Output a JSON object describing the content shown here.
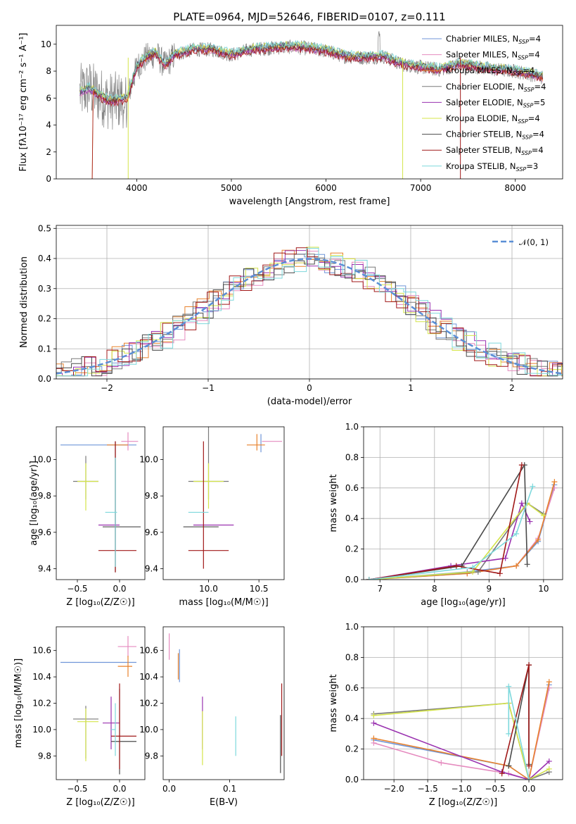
{
  "figure_title": "PLATE=0964, MJD=52646, FIBERID=0107, z=0.111",
  "colors": {
    "chabrier_miles": "#6f95d8",
    "salpeter_miles": "#e58bbf",
    "kroupa_miles": "#e8822c",
    "chabrier_elodie": "#7a7a7a",
    "salpeter_elodie": "#9a32b0",
    "kroupa_elodie": "#d4e44a",
    "chabrier_stelib": "#4a4a4a",
    "salpeter_stelib": "#a01818",
    "kroupa_stelib": "#7dd8dc",
    "gauss": "#5b8fd6",
    "grid": "#b0b0b0"
  },
  "legend_spectrum": [
    {
      "model": "Chabrier MILES",
      "nssp": "4"
    },
    {
      "model": "Salpeter MILES",
      "nssp": "4"
    },
    {
      "model": "Kroupa MILES",
      "nssp": "4"
    },
    {
      "model": "Chabrier ELODIE",
      "nssp": "4"
    },
    {
      "model": "Salpeter ELODIE",
      "nssp": "5"
    },
    {
      "model": "Kroupa ELODIE",
      "nssp": "4"
    },
    {
      "model": "Chabrier STELIB",
      "nssp": "4"
    },
    {
      "model": "Salpeter STELIB",
      "nssp": "4"
    },
    {
      "model": "Kroupa STELIB",
      "nssp": "3"
    }
  ],
  "chart_data": [
    {
      "type": "line",
      "panel": "spectrum",
      "xlabel": "wavelength [Angstrom, rest frame]",
      "ylabel": "Flux [fλ10⁻¹⁷ erg cm⁻² s⁻¹ A⁻¹]",
      "xlim": [
        3150,
        8500
      ],
      "ylim": [
        0,
        11.4
      ],
      "xticks": [
        4000,
        5000,
        6000,
        7000,
        8000
      ],
      "yticks": [
        0,
        2,
        4,
        6,
        8,
        10
      ],
      "continuum": {
        "x": [
          3400,
          3500,
          3600,
          3700,
          3800,
          3900,
          4000,
          4100,
          4200,
          4300,
          4400,
          4600,
          4800,
          5000,
          5200,
          5400,
          5600,
          5800,
          6000,
          6200,
          6400,
          6600,
          6800,
          7000,
          7200,
          7400,
          7600,
          7800,
          8000,
          8200,
          8300
        ],
        "y": [
          6.4,
          6.7,
          6.2,
          5.8,
          5.8,
          6.0,
          8.3,
          9.0,
          9.3,
          8.4,
          9.2,
          9.6,
          9.6,
          9.2,
          9.6,
          9.7,
          9.8,
          9.7,
          9.5,
          9.1,
          9.0,
          9.1,
          8.5,
          8.3,
          8.1,
          8.5,
          8.3,
          8.1,
          8.0,
          7.7,
          7.5
        ]
      },
      "grid": false,
      "legend": "top-right"
    },
    {
      "type": "histogram",
      "panel": "residuals",
      "xlabel": "(data-model)/error",
      "ylabel": "Normed distribution",
      "xlim": [
        -2.5,
        2.5
      ],
      "ylim": [
        0,
        0.51
      ],
      "xticks": [
        -2,
        -1,
        0,
        1,
        2
      ],
      "yticks": [
        0.0,
        0.1,
        0.2,
        0.3,
        0.4,
        0.5
      ],
      "gauss_label": "𝒩(0, 1)",
      "grid": true,
      "legend": "top-right"
    },
    {
      "type": "errorbar",
      "panel": "age-vs-Z",
      "xlabel": "Z [log₁₀(Z/Z☉)]",
      "ylabel": "age  [log₁₀(age/yr)]",
      "xlim": [
        -0.75,
        0.3
      ],
      "ylim": [
        9.34,
        10.18
      ],
      "xticks": [
        -0.5,
        0.0
      ],
      "yticks": [
        9.4,
        9.6,
        9.8,
        10.0
      ],
      "points": [
        {
          "c": "chabrier_miles",
          "x": 0.0,
          "xe": [
            0.7,
            0.2
          ],
          "y": 10.08,
          "ye": [
            0.0,
            0.0
          ]
        },
        {
          "c": "salpeter_miles",
          "x": 0.1,
          "xe": [
            0.08,
            0.12
          ],
          "y": 10.1,
          "ye": [
            0.05,
            0.05
          ]
        },
        {
          "c": "kroupa_miles",
          "x": 0.0,
          "xe": [
            0.15,
            0.1
          ],
          "y": 10.08,
          "ye": [
            0.0,
            0.0
          ]
        },
        {
          "c": "chabrier_elodie",
          "x": -0.4,
          "xe": [
            0.15,
            0.15
          ],
          "y": 9.88,
          "ye": [
            0.1,
            0.14
          ]
        },
        {
          "c": "salpeter_elodie",
          "x": -0.1,
          "xe": [
            0.15,
            0.1
          ],
          "y": 9.64,
          "ye": [
            0.0,
            0.0
          ]
        },
        {
          "c": "kroupa_elodie",
          "x": -0.4,
          "xe": [
            0.1,
            0.15
          ],
          "y": 9.88,
          "ye": [
            0.16,
            0.1
          ]
        },
        {
          "c": "chabrier_stelib",
          "x": -0.05,
          "xe": [
            0.15,
            0.3
          ],
          "y": 9.63,
          "ye": [
            0.25,
            0.47
          ]
        },
        {
          "c": "salpeter_stelib",
          "x": -0.05,
          "xe": [
            0.2,
            0.25
          ],
          "y": 9.5,
          "ye": [
            0.12,
            0.6
          ]
        },
        {
          "c": "kroupa_stelib",
          "x": -0.05,
          "xe": [
            0.12,
            0.02
          ],
          "y": 9.71,
          "ye": [
            0.3,
            0.3
          ]
        }
      ]
    },
    {
      "type": "errorbar",
      "panel": "age-vs-mass",
      "xlabel": "mass [log₁₀(M/M☉)]",
      "xlim": [
        9.55,
        10.75
      ],
      "ylim": [
        9.34,
        10.18
      ],
      "xticks": [
        10.0,
        10.5
      ],
      "yticks": [
        9.4,
        9.6,
        9.8,
        10.0
      ],
      "points": [
        {
          "c": "chabrier_miles",
          "x": 10.52,
          "xe": [
            0.0,
            0.0
          ],
          "y": 10.08,
          "ye": [
            0.04,
            0.06
          ]
        },
        {
          "c": "salpeter_miles",
          "x": 10.63,
          "xe": [
            0.1,
            0.1
          ],
          "y": 10.1,
          "ye": [
            0.0,
            0.0
          ]
        },
        {
          "c": "kroupa_miles",
          "x": 10.48,
          "xe": [
            0.1,
            0.08
          ],
          "y": 10.08,
          "ye": [
            0.03,
            0.06
          ]
        },
        {
          "c": "chabrier_elodie",
          "x": 10.0,
          "xe": [
            0.2,
            0.2
          ],
          "y": 9.88,
          "ye": [
            0.1,
            0.3
          ]
        },
        {
          "c": "salpeter_elodie",
          "x": 10.05,
          "xe": [
            0.2,
            0.2
          ],
          "y": 9.64,
          "ye": [
            0.0,
            0.0
          ]
        },
        {
          "c": "kroupa_elodie",
          "x": 10.0,
          "xe": [
            0.15,
            0.15
          ],
          "y": 9.88,
          "ye": [
            0.15,
            0.1
          ]
        },
        {
          "c": "chabrier_stelib",
          "x": 9.9,
          "xe": [
            0.15,
            0.2
          ],
          "y": 9.63,
          "ye": [
            0.0,
            0.0
          ]
        },
        {
          "c": "salpeter_stelib",
          "x": 9.95,
          "xe": [
            0.15,
            0.25
          ],
          "y": 9.5,
          "ye": [
            0.1,
            0.6
          ]
        },
        {
          "c": "kroupa_stelib",
          "x": 9.9,
          "xe": [
            0.1,
            0.1
          ],
          "y": 9.71,
          "ye": [
            0.0,
            0.0
          ]
        }
      ]
    },
    {
      "type": "line",
      "panel": "weight-vs-age",
      "xlabel": "age  [log₁₀(age/yr)]",
      "ylabel": "mass weight",
      "xlim": [
        6.7,
        10.35
      ],
      "ylim": [
        0,
        1
      ],
      "xticks": [
        7,
        8,
        9,
        10
      ],
      "yticks": [
        0.0,
        0.2,
        0.4,
        0.6,
        0.8,
        1.0
      ],
      "grid": true,
      "series": [
        {
          "c": "chabrier_miles",
          "x": [
            6.8,
            8.6,
            9.5,
            9.9,
            10.2
          ],
          "y": [
            0.0,
            0.05,
            0.09,
            0.25,
            0.62
          ]
        },
        {
          "c": "salpeter_miles",
          "x": [
            6.8,
            8.6,
            9.5,
            9.9,
            10.2
          ],
          "y": [
            0.0,
            0.04,
            0.09,
            0.27,
            0.6
          ]
        },
        {
          "c": "kroupa_miles",
          "x": [
            6.8,
            8.6,
            9.5,
            9.9,
            10.2
          ],
          "y": [
            0.0,
            0.04,
            0.09,
            0.26,
            0.64
          ]
        },
        {
          "c": "chabrier_elodie",
          "x": [
            6.8,
            8.8,
            9.7,
            10.0
          ],
          "y": [
            0.0,
            0.05,
            0.5,
            0.43
          ]
        },
        {
          "c": "salpeter_elodie",
          "x": [
            6.8,
            8.3,
            9.3,
            9.6,
            9.75
          ],
          "y": [
            0.0,
            0.09,
            0.14,
            0.5,
            0.38
          ]
        },
        {
          "c": "kroupa_elodie",
          "x": [
            6.8,
            8.7,
            9.7,
            10.0
          ],
          "y": [
            0.0,
            0.05,
            0.5,
            0.42
          ]
        },
        {
          "c": "chabrier_stelib",
          "x": [
            6.8,
            8.5,
            9.65,
            9.7
          ],
          "y": [
            0.0,
            0.09,
            0.75,
            0.1
          ]
        },
        {
          "c": "salpeter_stelib",
          "x": [
            6.8,
            8.4,
            9.2,
            9.6
          ],
          "y": [
            0.0,
            0.09,
            0.04,
            0.75
          ]
        },
        {
          "c": "kroupa_stelib",
          "x": [
            6.8,
            8.7,
            9.5,
            9.8
          ],
          "y": [
            0.0,
            0.08,
            0.3,
            0.61
          ]
        }
      ]
    },
    {
      "type": "errorbar",
      "panel": "mass-vs-Z",
      "xlabel": "Z [log₁₀(Z/Z☉)]",
      "ylabel": "mass [log₁₀(M/M☉)]",
      "xlim": [
        -0.75,
        0.3
      ],
      "ylim": [
        9.62,
        10.78
      ],
      "xticks": [
        -0.5,
        0.0
      ],
      "yticks": [
        9.8,
        10.0,
        10.2,
        10.4,
        10.6
      ],
      "points": [
        {
          "c": "chabrier_miles",
          "x": 0.0,
          "xe": [
            0.7,
            0.2
          ],
          "y": 10.51,
          "ye": [
            0.0,
            0.0
          ]
        },
        {
          "c": "salpeter_miles",
          "x": 0.1,
          "xe": [
            0.12,
            0.1
          ],
          "y": 10.63,
          "ye": [
            0.08,
            0.08
          ]
        },
        {
          "c": "kroupa_miles",
          "x": 0.1,
          "xe": [
            0.12,
            0.05
          ],
          "y": 10.48,
          "ye": [
            0.08,
            0.08
          ]
        },
        {
          "c": "chabrier_elodie",
          "x": -0.4,
          "xe": [
            0.15,
            0.15
          ],
          "y": 10.08,
          "ye": [
            0.3,
            0.1
          ]
        },
        {
          "c": "salpeter_elodie",
          "x": -0.1,
          "xe": [
            0.1,
            0.1
          ],
          "y": 10.05,
          "ye": [
            0.2,
            0.2
          ]
        },
        {
          "c": "kroupa_elodie",
          "x": -0.4,
          "xe": [
            0.1,
            0.15
          ],
          "y": 10.06,
          "ye": [
            0.3,
            0.1
          ]
        },
        {
          "c": "chabrier_stelib",
          "x": 0.0,
          "xe": [
            0.1,
            0.2
          ],
          "y": 9.91,
          "ye": [
            0.25,
            0.4
          ]
        },
        {
          "c": "salpeter_stelib",
          "x": 0.0,
          "xe": [
            0.1,
            0.2
          ],
          "y": 9.95,
          "ye": [
            0.25,
            0.4
          ]
        },
        {
          "c": "kroupa_stelib",
          "x": -0.05,
          "xe": [
            0.05,
            0.0
          ],
          "y": 10.0,
          "ye": [
            0.2,
            0.2
          ]
        }
      ]
    },
    {
      "type": "errorbar",
      "panel": "mass-vs-ebv",
      "xlabel": "E(B-V)",
      "xlim": [
        -0.01,
        0.19
      ],
      "ylim": [
        9.62,
        10.78
      ],
      "xticks": [
        0.0,
        0.1
      ],
      "yticks": [
        9.8,
        10.0,
        10.2,
        10.4,
        10.6
      ],
      "points": [
        {
          "c": "chabrier_miles",
          "x": 0.017,
          "xe": [
            0.0,
            0.0
          ],
          "y": 10.51,
          "ye": [
            0.15,
            0.1
          ]
        },
        {
          "c": "salpeter_miles",
          "x": 0.0,
          "xe": [
            0.0,
            0.0
          ],
          "y": 10.63,
          "ye": [
            0.1,
            0.1
          ]
        },
        {
          "c": "kroupa_miles",
          "x": 0.015,
          "xe": [
            0.0,
            0.0
          ],
          "y": 10.48,
          "ye": [
            0.1,
            0.1
          ]
        },
        {
          "c": "salpeter_elodie",
          "x": 0.055,
          "xe": [
            0.0,
            0.0
          ],
          "y": 10.05,
          "ye": [
            0.2,
            0.2
          ]
        },
        {
          "c": "kroupa_elodie",
          "x": 0.055,
          "xe": [
            0.0,
            0.0
          ],
          "y": 10.0,
          "ye": [
            0.27,
            0.14
          ]
        },
        {
          "c": "chabrier_stelib",
          "x": 0.184,
          "xe": [
            0.0,
            0.0
          ],
          "y": 9.91,
          "ye": [
            0.24,
            0.2
          ]
        },
        {
          "c": "salpeter_stelib",
          "x": 0.186,
          "xe": [
            0.0,
            0.0
          ],
          "y": 9.95,
          "ye": [
            0.15,
            0.4
          ]
        },
        {
          "c": "kroupa_stelib",
          "x": 0.11,
          "xe": [
            0.0,
            0.0
          ],
          "y": 9.95,
          "ye": [
            0.15,
            0.15
          ]
        }
      ]
    },
    {
      "type": "line",
      "panel": "weight-vs-Z",
      "xlabel": "Z [log₁₀(Z/Z☉)]",
      "ylabel": "mass weight",
      "xlim": [
        -2.45,
        0.5
      ],
      "ylim": [
        0,
        1
      ],
      "xticks": [
        -2.0,
        -1.5,
        -1.0,
        -0.5,
        0.0
      ],
      "yticks": [
        0.0,
        0.2,
        0.4,
        0.6,
        0.8,
        1.0
      ],
      "grid": true,
      "series": [
        {
          "c": "chabrier_miles",
          "x": [
            -2.3,
            -0.3,
            0.0,
            0.3
          ],
          "y": [
            0.26,
            0.09,
            0.0,
            0.62
          ]
        },
        {
          "c": "salpeter_miles",
          "x": [
            -2.3,
            -1.3,
            -0.3,
            0.0,
            0.3
          ],
          "y": [
            0.24,
            0.11,
            0.04,
            0.0,
            0.6
          ]
        },
        {
          "c": "kroupa_miles",
          "x": [
            -2.3,
            -0.3,
            0.0,
            0.3
          ],
          "y": [
            0.27,
            0.09,
            0.0,
            0.64
          ]
        },
        {
          "c": "chabrier_elodie",
          "x": [
            -2.3,
            -0.3,
            0.0,
            0.3
          ],
          "y": [
            0.43,
            0.5,
            0.0,
            0.05
          ]
        },
        {
          "c": "salpeter_elodie",
          "x": [
            -2.3,
            -0.4,
            0.0,
            0.3
          ],
          "y": [
            0.37,
            0.05,
            0.0,
            0.12
          ]
        },
        {
          "c": "kroupa_elodie",
          "x": [
            -2.3,
            -0.3,
            0.0,
            0.3
          ],
          "y": [
            0.42,
            0.5,
            0.0,
            0.07
          ]
        },
        {
          "c": "chabrier_stelib",
          "x": [
            -0.3,
            0.0,
            0.0
          ],
          "y": [
            0.09,
            0.75,
            0.1
          ]
        },
        {
          "c": "salpeter_stelib",
          "x": [
            -0.4,
            0.0,
            0.0
          ],
          "y": [
            0.04,
            0.75,
            0.09
          ]
        },
        {
          "c": "kroupa_stelib",
          "x": [
            -0.3,
            -0.3,
            0.0
          ],
          "y": [
            0.3,
            0.61,
            0.0
          ]
        }
      ]
    }
  ]
}
